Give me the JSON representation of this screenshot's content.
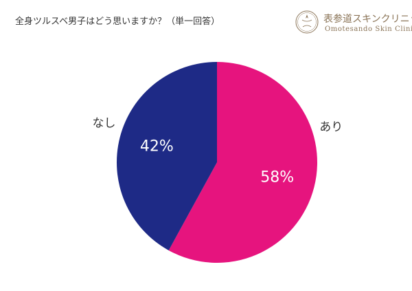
{
  "title": "全身ツルスベ男子はどう思いますか？（単一回答）",
  "logo": {
    "name": "表参道スキンクリニック",
    "subtitle": "Omotesando Skin Clinic",
    "mark_text": "Omotesando Skin Clinic"
  },
  "colors": {
    "yes": "#e6147e",
    "no": "#1e2a86",
    "label_text": "#333333",
    "logo_gold": "#8a7356"
  },
  "chart_data": {
    "type": "pie",
    "title": "全身ツルスベ男子はどう思いますか？（単一回答）",
    "start_angle_deg": 0,
    "direction": "clockwise",
    "slices": [
      {
        "label": "あり",
        "value": 58,
        "value_label": "58%",
        "color": "#e6147e"
      },
      {
        "label": "なし",
        "value": 42,
        "value_label": "42%",
        "color": "#1e2a86"
      }
    ]
  }
}
